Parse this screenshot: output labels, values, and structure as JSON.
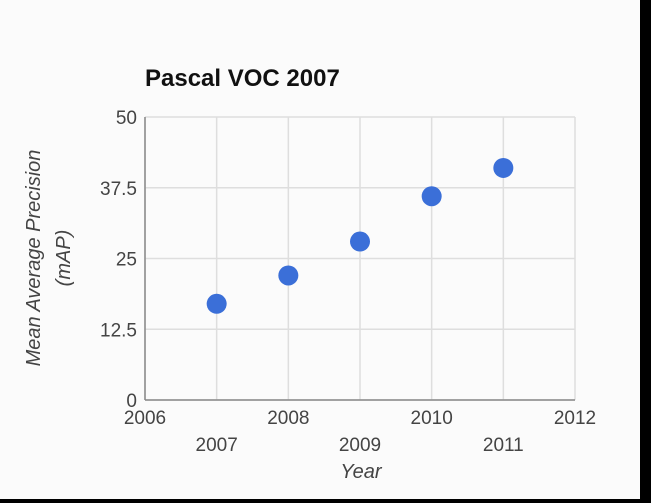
{
  "chart_data": {
    "type": "scatter",
    "title": "Pascal VOC 2007",
    "xlabel": "Year",
    "ylabel_lines": [
      "Mean Average Precision",
      "(mAP)"
    ],
    "xlim": [
      2006,
      2012
    ],
    "ylim": [
      0,
      50
    ],
    "x_ticks_major": [
      "2006",
      "2008",
      "2010",
      "2012"
    ],
    "x_ticks_minor": [
      "2007",
      "2009",
      "2011"
    ],
    "y_ticks": [
      "0",
      "12.5",
      "25",
      "37.5",
      "50"
    ],
    "grid": true,
    "point_color": "#3b6fd8",
    "series": [
      {
        "x": [
          2007,
          2008,
          2009,
          2010,
          2011
        ],
        "y": [
          17,
          22,
          28,
          36,
          41
        ]
      }
    ]
  }
}
